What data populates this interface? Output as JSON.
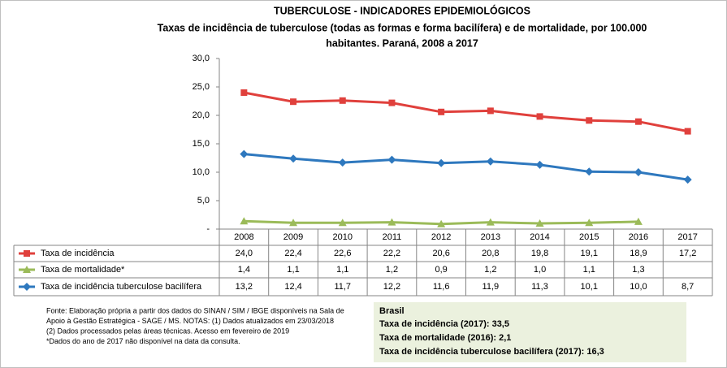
{
  "chart_data": {
    "type": "line",
    "title": "TUBERCULOSE - INDICADORES EPIDEMIOLÓGICOS",
    "subtitle": [
      "Taxas de incidência de tuberculose (todas as formas e forma bacilífera) e de mortalidade,  por 100.000",
      "habitantes. Paraná, 2008 a 2017"
    ],
    "categories": [
      "2008",
      "2009",
      "2010",
      "2011",
      "2012",
      "2013",
      "2014",
      "2015",
      "2016",
      "2017"
    ],
    "series": [
      {
        "name": "Taxa de incidência",
        "color": "#e0403c",
        "marker": "square",
        "values": [
          24.0,
          22.4,
          22.6,
          22.2,
          20.6,
          20.8,
          19.8,
          19.1,
          18.9,
          17.2
        ],
        "value_labels": [
          "24,0",
          "22,4",
          "22,6",
          "22,2",
          "20,6",
          "20,8",
          "19,8",
          "19,1",
          "18,9",
          "17,2"
        ]
      },
      {
        "name": "Taxa de mortalidade*",
        "color": "#9bbb59",
        "marker": "triangle",
        "values": [
          1.4,
          1.1,
          1.1,
          1.2,
          0.9,
          1.2,
          1.0,
          1.1,
          1.3,
          null
        ],
        "value_labels": [
          "1,4",
          "1,1",
          "1,1",
          "1,2",
          "0,9",
          "1,2",
          "1,0",
          "1,1",
          "1,3",
          null
        ]
      },
      {
        "name": "Taxa de incidência tuberculose bacilífera",
        "color": "#2e78be",
        "marker": "diamond",
        "values": [
          13.2,
          12.4,
          11.7,
          12.2,
          11.6,
          11.9,
          11.3,
          10.1,
          10.0,
          8.7
        ],
        "value_labels": [
          "13,2",
          "12,4",
          "11,7",
          "12,2",
          "11,6",
          "11,9",
          "11,3",
          "10,1",
          "10,0",
          "8,7"
        ]
      }
    ],
    "ylim": [
      0,
      30
    ],
    "yticks": [
      {
        "value": 0,
        "label": "-"
      },
      {
        "value": 5,
        "label": "5,0"
      },
      {
        "value": 10,
        "label": "10,0"
      },
      {
        "value": 15,
        "label": "15,0"
      },
      {
        "value": 20,
        "label": "20,0"
      },
      {
        "value": 25,
        "label": "25,0"
      },
      {
        "value": 30,
        "label": "30,0"
      }
    ],
    "grid": false,
    "footnotes": [
      "Fonte: Elaboração própria a partir dos dados do SINAN / SIM / IBGE disponíveis na Sala de",
      "Apoio  à Gestão Estratégica - SAGE / MS. NOTAS: (1) Dados atualizados em 23/03/2018",
      "(2) Dados processados pelas áreas técnicas. Acesso em fevereiro de 2019",
      "*Dados do ano de 2017 não disponível na data da consulta."
    ],
    "box": {
      "title": "Brasil",
      "lines": [
        "Taxa de incidência  (2017): 33,5",
        "Taxa de mortalidade (2016): 2,1",
        "Taxa de incidência  tuberculose bacilífera  (2017): 16,3"
      ]
    }
  }
}
